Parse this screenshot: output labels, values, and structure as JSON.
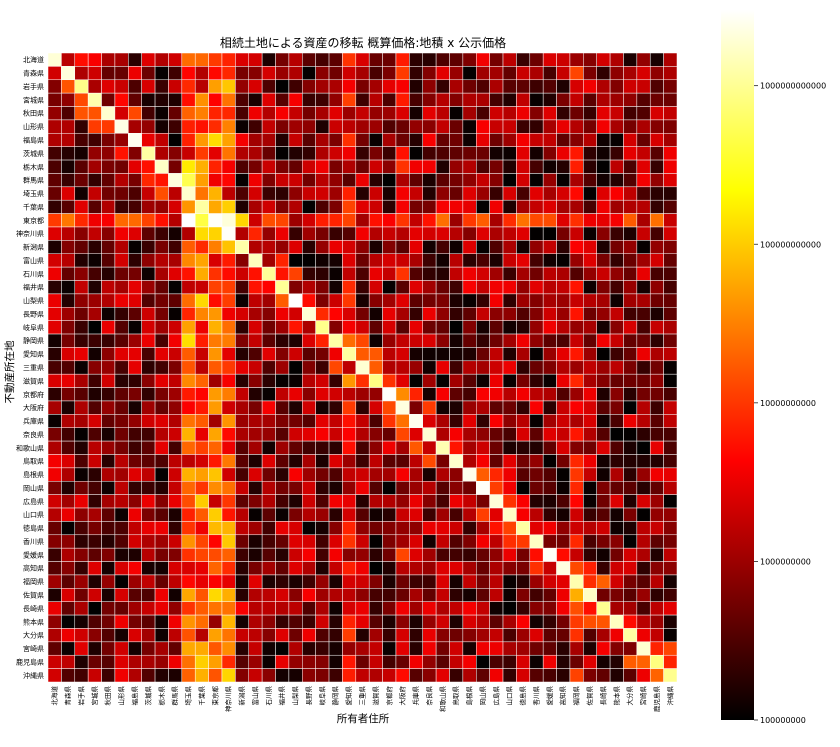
{
  "chart_data": {
    "type": "heatmap",
    "title": "相続土地による資産の移転 概算価格:地積 x 公示価格",
    "xlabel": "所有者住所",
    "ylabel": "不動産所在地",
    "color_scale": "log",
    "colormap": "hot",
    "vmin": 100000000,
    "vmax": 3000000000000,
    "colorbar_ticks": [
      100000000,
      1000000000,
      10000000000,
      100000000000,
      1000000000000
    ],
    "colorbar_tick_labels": [
      "100000000",
      "1000000000",
      "10000000000",
      "100000000000",
      "1000000000000"
    ],
    "prefectures": [
      "北海道",
      "青森県",
      "岩手県",
      "宮城県",
      "秋田県",
      "山形県",
      "福島県",
      "茨城県",
      "栃木県",
      "群馬県",
      "埼玉県",
      "千葉県",
      "東京都",
      "神奈川県",
      "新潟県",
      "富山県",
      "石川県",
      "福井県",
      "山梨県",
      "長野県",
      "岐阜県",
      "静岡県",
      "愛知県",
      "三重県",
      "滋賀県",
      "京都府",
      "大阪府",
      "兵庫県",
      "奈良県",
      "和歌山県",
      "鳥取県",
      "島根県",
      "岡山県",
      "広島県",
      "山口県",
      "徳島県",
      "香川県",
      "愛媛県",
      "高知県",
      "福岡県",
      "佐賀県",
      "長崎県",
      "熊本県",
      "大分県",
      "宮崎県",
      "鹿児島県",
      "沖縄県"
    ],
    "grid": true,
    "legend": "colorbar-right"
  }
}
